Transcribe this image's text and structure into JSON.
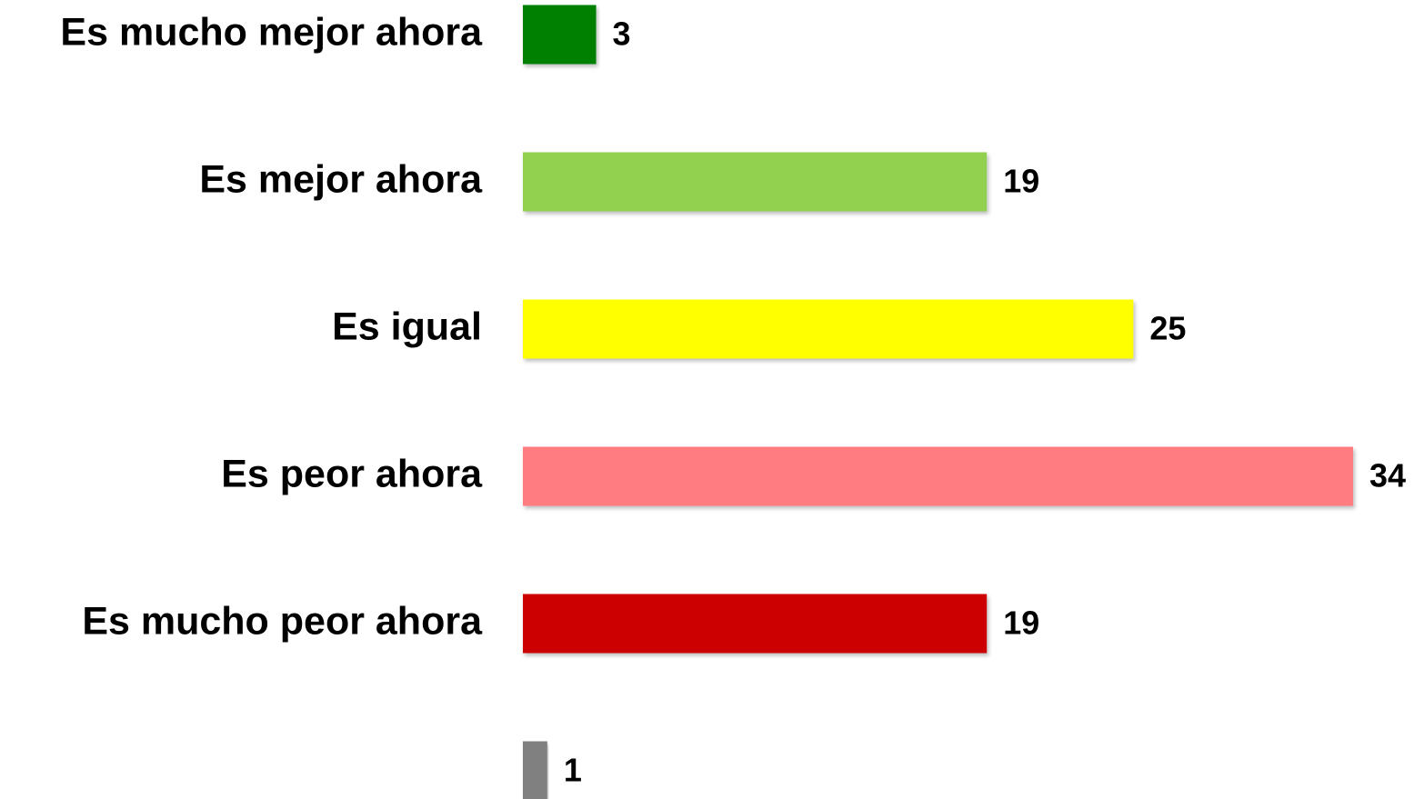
{
  "chart_data": {
    "type": "bar",
    "orientation": "horizontal",
    "categories": [
      "Es mucho mejor ahora",
      "Es mejor ahora",
      "Es igual",
      "Es peor ahora",
      "Es mucho peor ahora",
      null
    ],
    "values": [
      3,
      19,
      25,
      34,
      19,
      1
    ],
    "colors": [
      "#008000",
      "#92d050",
      "#ffff00",
      "#ff7c80",
      "#cc0000",
      "#808080"
    ]
  }
}
